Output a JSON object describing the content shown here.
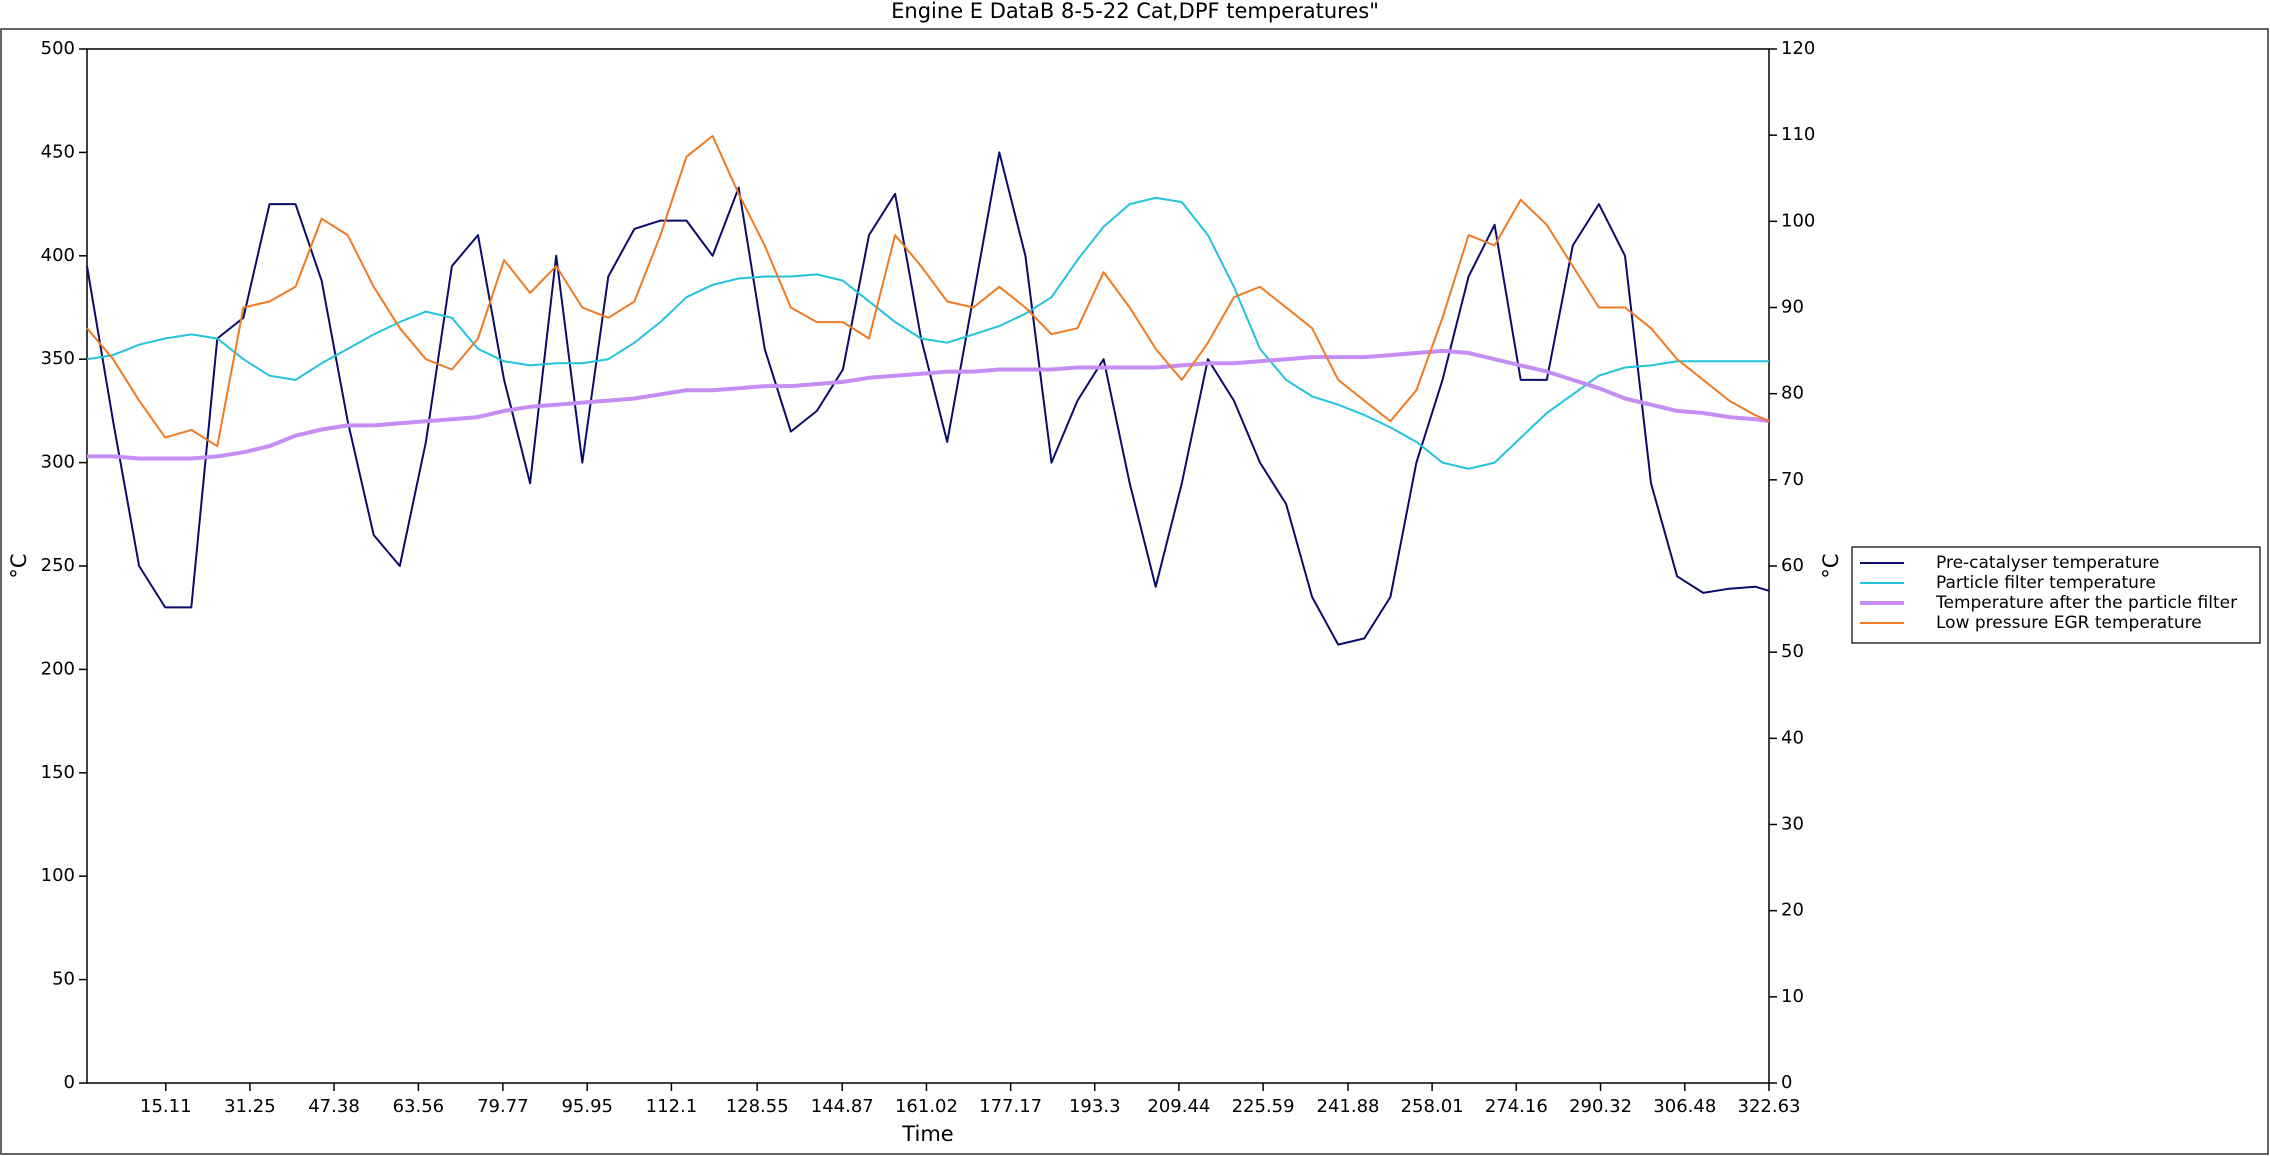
{
  "chart_data": {
    "type": "line",
    "title": "Engine E DataB 8-5-22 Cat,DPF temperatures\"",
    "x_label": "Time",
    "y_label": "°C",
    "y2_label": "°C",
    "x": [
      0,
      5,
      10,
      15,
      20,
      25,
      30,
      35,
      40,
      45,
      50,
      55,
      60,
      65,
      70,
      75,
      80,
      85,
      90,
      95,
      100,
      105,
      110,
      115,
      120,
      125,
      130,
      135,
      140,
      145,
      150,
      155,
      160,
      165,
      170,
      175,
      180,
      185,
      190,
      195,
      200,
      205,
      210,
      215,
      220,
      225,
      230,
      235,
      240,
      245,
      250,
      255,
      260,
      265,
      270,
      275,
      280,
      285,
      290,
      295,
      300,
      305,
      310,
      315,
      320,
      322.63
    ],
    "xlim": [
      0,
      322.63
    ],
    "xticks": [
      15.11,
      31.25,
      47.38,
      63.56,
      79.77,
      95.95,
      112.1,
      128.55,
      144.87,
      161.02,
      177.17,
      193.3,
      209.44,
      225.59,
      241.88,
      258.01,
      274.16,
      290.32,
      306.48,
      322.63
    ],
    "ylim": [
      0,
      500
    ],
    "yticks": [
      0,
      50,
      100,
      150,
      200,
      250,
      300,
      350,
      400,
      450,
      500
    ],
    "y2lim": [
      0,
      120
    ],
    "y2ticks": [
      0,
      10,
      20,
      30,
      40,
      50,
      60,
      70,
      80,
      90,
      100,
      110,
      120
    ],
    "grid": false,
    "legend": "right",
    "series": [
      {
        "name": "Pre-catalyser temperature",
        "color": "#0b0b6b",
        "width": 2,
        "values": [
          395,
          320,
          250,
          230,
          230,
          360,
          370,
          425,
          425,
          388,
          320,
          265,
          250,
          310,
          395,
          410,
          340,
          290,
          400,
          300,
          390,
          413,
          417,
          417,
          400,
          433,
          355,
          315,
          325,
          345,
          410,
          430,
          360,
          310,
          380,
          450,
          400,
          300,
          330,
          350,
          290,
          240,
          290,
          350,
          330,
          300,
          280,
          235,
          212,
          215,
          235,
          300,
          340,
          390,
          415,
          340,
          340,
          405,
          425,
          400,
          290,
          245,
          237,
          239,
          240,
          238
        ]
      },
      {
        "name": "Particle filter temperature",
        "color": "#22c3dc",
        "width": 2,
        "values": [
          350,
          352,
          357,
          360,
          362,
          360,
          350,
          342,
          340,
          348,
          355,
          362,
          368,
          373,
          370,
          355,
          349,
          347,
          348,
          348,
          350,
          358,
          368,
          380,
          386,
          389,
          390,
          390,
          391,
          388,
          378,
          368,
          360,
          358,
          362,
          366,
          372,
          380,
          398,
          414,
          425,
          428,
          426,
          410,
          385,
          355,
          340,
          332,
          328,
          323,
          317,
          310,
          300,
          297,
          300,
          312,
          324,
          333,
          342,
          346,
          347,
          349,
          349,
          349,
          349,
          349
        ]
      },
      {
        "name": "Temperature after the particle filter",
        "color": "#c48ef2",
        "width": 4,
        "values": [
          303,
          303,
          302,
          302,
          302,
          303,
          305,
          308,
          313,
          316,
          318,
          318,
          319,
          320,
          321,
          322,
          325,
          327,
          328,
          329,
          330,
          331,
          333,
          335,
          335,
          336,
          337,
          337,
          338,
          339,
          341,
          342,
          343,
          344,
          344,
          345,
          345,
          345,
          346,
          346,
          346,
          346,
          347,
          348,
          348,
          349,
          350,
          351,
          351,
          351,
          352,
          353,
          354,
          353,
          350,
          347,
          344,
          340,
          336,
          331,
          328,
          325,
          324,
          322,
          321,
          320
        ]
      },
      {
        "name": "Low pressure EGR temperature",
        "color": "#ef7a22",
        "width": 2,
        "axis": "y2",
        "values": [
          87.6,
          84,
          79.2,
          74.9,
          75.8,
          73.9,
          90,
          90.7,
          92.4,
          100.3,
          98.4,
          92.4,
          87.6,
          84,
          82.8,
          86.4,
          95.5,
          91.7,
          94.8,
          90,
          88.8,
          90.7,
          98.4,
          107.5,
          109.9,
          103.2,
          97.2,
          90,
          88.3,
          88.3,
          86.4,
          98.4,
          94.8,
          90.7,
          90,
          92.4,
          90,
          86.9,
          87.6,
          94.1,
          90,
          85.2,
          81.6,
          85.9,
          91.2,
          92.4,
          90,
          87.6,
          81.6,
          79.2,
          76.8,
          80.4,
          88.8,
          98.4,
          97.2,
          102.5,
          99.6,
          94.8,
          90,
          90,
          87.6,
          84,
          81.6,
          79.2,
          77.5,
          76.8
        ]
      }
    ]
  }
}
